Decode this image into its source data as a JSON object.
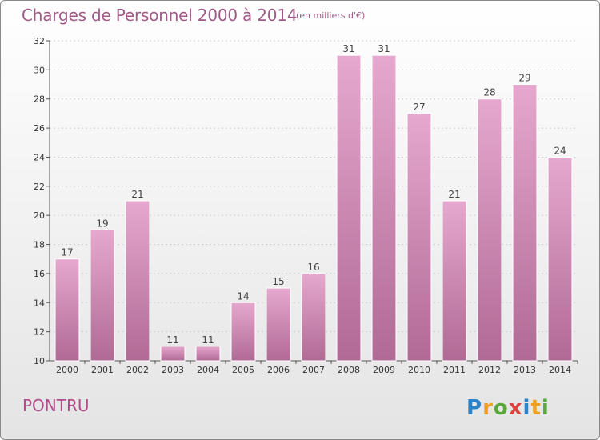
{
  "title": "Charges de Personnel 2000 à 2014",
  "subtitle": "(en milliers d'€)",
  "commune": "PONTRU",
  "logo": "Proxiti",
  "colors": {
    "bar_top": "#e6a8cf",
    "bar_bottom": "#b06a95",
    "bar_edge": "#ffffff",
    "title": "#a05a88",
    "commune": "#b04a8a",
    "grid": "#cccccc"
  },
  "chart_data": {
    "type": "bar",
    "categories": [
      "2000",
      "2001",
      "2002",
      "2003",
      "2004",
      "2005",
      "2006",
      "2007",
      "2008",
      "2009",
      "2010",
      "2011",
      "2012",
      "2013",
      "2014"
    ],
    "values": [
      17,
      19,
      21,
      11,
      11,
      14,
      15,
      16,
      31,
      31,
      27,
      21,
      28,
      29,
      24
    ],
    "ylim": [
      10,
      32
    ],
    "yticks": [
      10,
      12,
      14,
      16,
      18,
      20,
      22,
      24,
      26,
      28,
      30,
      32
    ],
    "grid": "horizontal dotted",
    "legend": "none"
  }
}
